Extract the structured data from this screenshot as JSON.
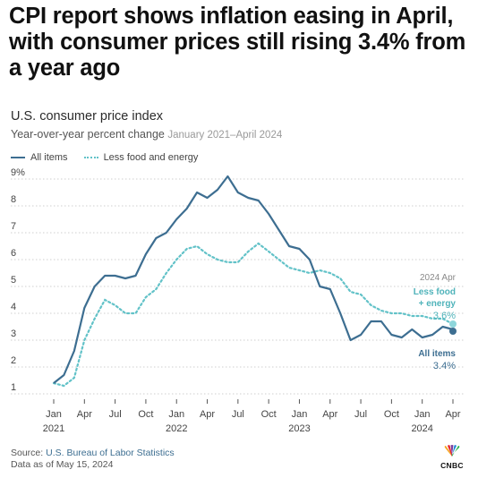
{
  "headline": "CPI report shows inflation easing in April, with consumer prices still rising 3.4% from a year ago",
  "chart_data": {
    "type": "line",
    "title": "U.S. consumer price index",
    "subtitle": "Year-over-year percent change",
    "subtitle_range": "January 2021–April 2024",
    "xlabel": "",
    "ylabel": "",
    "ylim": [
      1,
      9
    ],
    "yticks": [
      "1",
      "2",
      "3",
      "4",
      "5",
      "6",
      "7",
      "8",
      "9%"
    ],
    "x_ticks": [
      {
        "label": "Jan",
        "year": "2021"
      },
      {
        "label": "Apr",
        "year": ""
      },
      {
        "label": "Jul",
        "year": ""
      },
      {
        "label": "Oct",
        "year": ""
      },
      {
        "label": "Jan",
        "year": "2022"
      },
      {
        "label": "Apr",
        "year": ""
      },
      {
        "label": "Jul",
        "year": ""
      },
      {
        "label": "Oct",
        "year": ""
      },
      {
        "label": "Jan",
        "year": "2023"
      },
      {
        "label": "Apr",
        "year": ""
      },
      {
        "label": "Jul",
        "year": ""
      },
      {
        "label": "Oct",
        "year": ""
      },
      {
        "label": "Jan",
        "year": "2024"
      },
      {
        "label": "Apr",
        "year": ""
      }
    ],
    "x": [
      "2021-01",
      "2021-02",
      "2021-03",
      "2021-04",
      "2021-05",
      "2021-06",
      "2021-07",
      "2021-08",
      "2021-09",
      "2021-10",
      "2021-11",
      "2021-12",
      "2022-01",
      "2022-02",
      "2022-03",
      "2022-04",
      "2022-05",
      "2022-06",
      "2022-07",
      "2022-08",
      "2022-09",
      "2022-10",
      "2022-11",
      "2022-12",
      "2023-01",
      "2023-02",
      "2023-03",
      "2023-04",
      "2023-05",
      "2023-06",
      "2023-07",
      "2023-08",
      "2023-09",
      "2023-10",
      "2023-11",
      "2023-12",
      "2024-01",
      "2024-02",
      "2024-03",
      "2024-04"
    ],
    "series": [
      {
        "name": "All items",
        "color": "#3d6e91",
        "style": "solid",
        "values": [
          1.4,
          1.7,
          2.6,
          4.2,
          5.0,
          5.4,
          5.4,
          5.3,
          5.4,
          6.2,
          6.8,
          7.0,
          7.5,
          7.9,
          8.5,
          8.3,
          8.6,
          9.1,
          8.5,
          8.3,
          8.2,
          7.7,
          7.1,
          6.5,
          6.4,
          6.0,
          5.0,
          4.9,
          4.0,
          3.0,
          3.2,
          3.7,
          3.7,
          3.2,
          3.1,
          3.4,
          3.1,
          3.2,
          3.5,
          3.4
        ]
      },
      {
        "name": "Less food and energy",
        "color": "#62c2c8",
        "style": "dotted",
        "values": [
          1.4,
          1.3,
          1.6,
          3.0,
          3.8,
          4.5,
          4.3,
          4.0,
          4.0,
          4.6,
          4.9,
          5.5,
          6.0,
          6.4,
          6.5,
          6.2,
          6.0,
          5.9,
          5.9,
          6.3,
          6.6,
          6.3,
          6.0,
          5.7,
          5.6,
          5.5,
          5.6,
          5.5,
          5.3,
          4.8,
          4.7,
          4.3,
          4.1,
          4.0,
          4.0,
          3.9,
          3.9,
          3.8,
          3.8,
          3.6
        ]
      }
    ],
    "annotations": {
      "period": "2024 Apr",
      "core_label_line1": "Less food",
      "core_label_line2": "+ energy",
      "core_value": "3.6%",
      "all_label": "All items",
      "all_value": "3.4%"
    },
    "grid": "horizontal-dotted",
    "legend_placement": "top-left"
  },
  "source": {
    "prefix": "Source:",
    "value": "U.S. Bureau of Labor Statistics",
    "date_note": "Data as of May 15, 2024"
  },
  "logo": {
    "text": "CNBC",
    "icon": "peacock-icon"
  }
}
